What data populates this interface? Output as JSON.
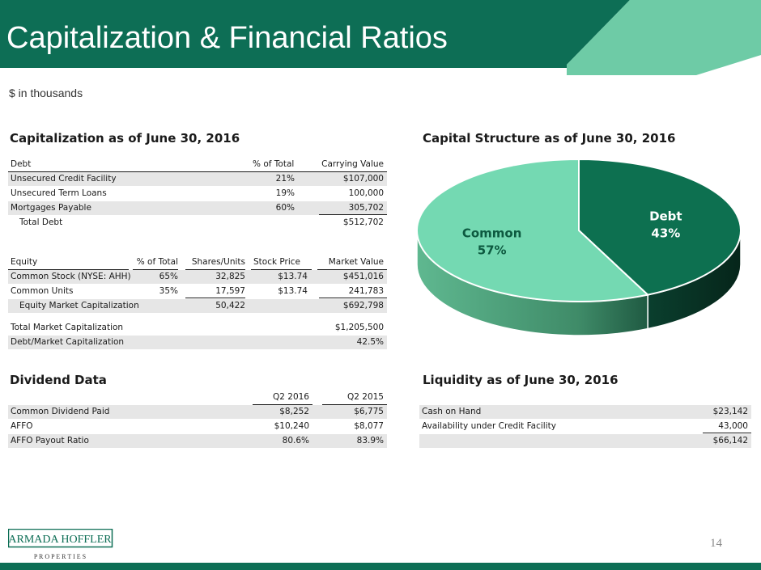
{
  "header": {
    "title": "Capitalization & Financial Ratios",
    "subtitle": "$ in thousands"
  },
  "colors": {
    "brand_dark": "#0d6e55",
    "brand_light": "#6ecba6",
    "debt": "#0d7050",
    "common": "#74d9b2"
  },
  "capitalization": {
    "title": "Capitalization as of June 30, 2016",
    "debt_headers": {
      "label": "Debt",
      "pct": "% of Total",
      "value": "Carrying Value"
    },
    "debt_rows": [
      {
        "label": "Unsecured Credit Facility",
        "pct": "21%",
        "value": "$107,000"
      },
      {
        "label": "Unsecured Term Loans",
        "pct": "19%",
        "value": "100,000"
      },
      {
        "label": "Mortgages Payable",
        "pct": "60%",
        "value": "305,702"
      }
    ],
    "total_debt": {
      "label": "Total Debt",
      "value": "$512,702"
    },
    "equity_headers": {
      "label": "Equity",
      "pct": "% of Total",
      "shares": "Shares/Units",
      "price": "Stock Price",
      "value": "Market Value"
    },
    "equity_rows": [
      {
        "label": "Common Stock (NYSE: AHH)",
        "pct": "65%",
        "shares": "32,825",
        "price": "$13.74",
        "value": "$451,016"
      },
      {
        "label": "Common Units",
        "pct": "35%",
        "shares": "17,597",
        "price": "$13.74",
        "value": "241,783"
      }
    ],
    "equity_total": {
      "label": "Equity Market Capitalization",
      "shares": "50,422",
      "value": "$692,798"
    },
    "total_market_cap": {
      "label": "Total Market Capitalization",
      "value": "$1,205,500"
    },
    "debt_ratio": {
      "label": "Debt/Market Capitalization",
      "value": "42.5%"
    }
  },
  "capital_structure": {
    "title": "Capital Structure as of June 30, 2016"
  },
  "chart_data": {
    "type": "pie",
    "categories": [
      "Debt",
      "Common"
    ],
    "values": [
      43,
      57
    ],
    "labels": [
      "43%",
      "57%"
    ],
    "title": "",
    "colors": [
      "#0d7050",
      "#74d9b2"
    ]
  },
  "dividend": {
    "title": "Dividend Data",
    "headers": {
      "q2_2016": "Q2 2016",
      "q2_2015": "Q2 2015"
    },
    "rows": [
      {
        "label": "Common Dividend Paid",
        "q2_2016": "$8,252",
        "q2_2015": "$6,775"
      },
      {
        "label": "AFFO",
        "q2_2016": "$10,240",
        "q2_2015": "$8,077"
      },
      {
        "label": "AFFO Payout Ratio",
        "q2_2016": "80.6%",
        "q2_2015": "83.9%"
      }
    ]
  },
  "liquidity": {
    "title": "Liquidity as of June 30, 2016",
    "rows": [
      {
        "label": "Cash on Hand",
        "value": "$23,142"
      },
      {
        "label": "Availability under Credit Facility",
        "value": "43,000"
      }
    ],
    "total": {
      "value": "$66,142"
    }
  },
  "footer": {
    "logo_main": "ARMADA HOFFLER",
    "logo_sub": "P R O P E R T I E S",
    "page_number": "14"
  }
}
